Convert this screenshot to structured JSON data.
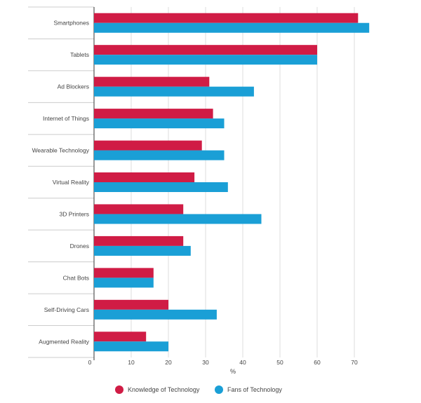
{
  "chart_data": {
    "type": "bar",
    "orientation": "horizontal",
    "categories": [
      "Smartphones",
      "Tablets",
      "Ad Blockers",
      "Internet of Things",
      "Wearable Technology",
      "Virtual Reality",
      "3D Printers",
      "Drones",
      "Chat Bots",
      "Self-Driving Cars",
      "Augmented Reality"
    ],
    "series": [
      {
        "name": "Knowledge of Technology",
        "color": "#d01c45",
        "values": [
          71,
          60,
          31,
          32,
          29,
          27,
          24,
          24,
          16,
          20,
          14
        ]
      },
      {
        "name": "Fans of Technology",
        "color": "#1a9fd6",
        "values": [
          74,
          60,
          43,
          35,
          35,
          36,
          45,
          26,
          16,
          33,
          20
        ]
      }
    ],
    "xlabel": "%",
    "xlim": [
      0,
      80
    ],
    "xticks": [
      "0",
      "10",
      "20",
      "30",
      "40",
      "50",
      "60",
      "70"
    ],
    "grid": "vertical",
    "legend_position": "bottom"
  }
}
